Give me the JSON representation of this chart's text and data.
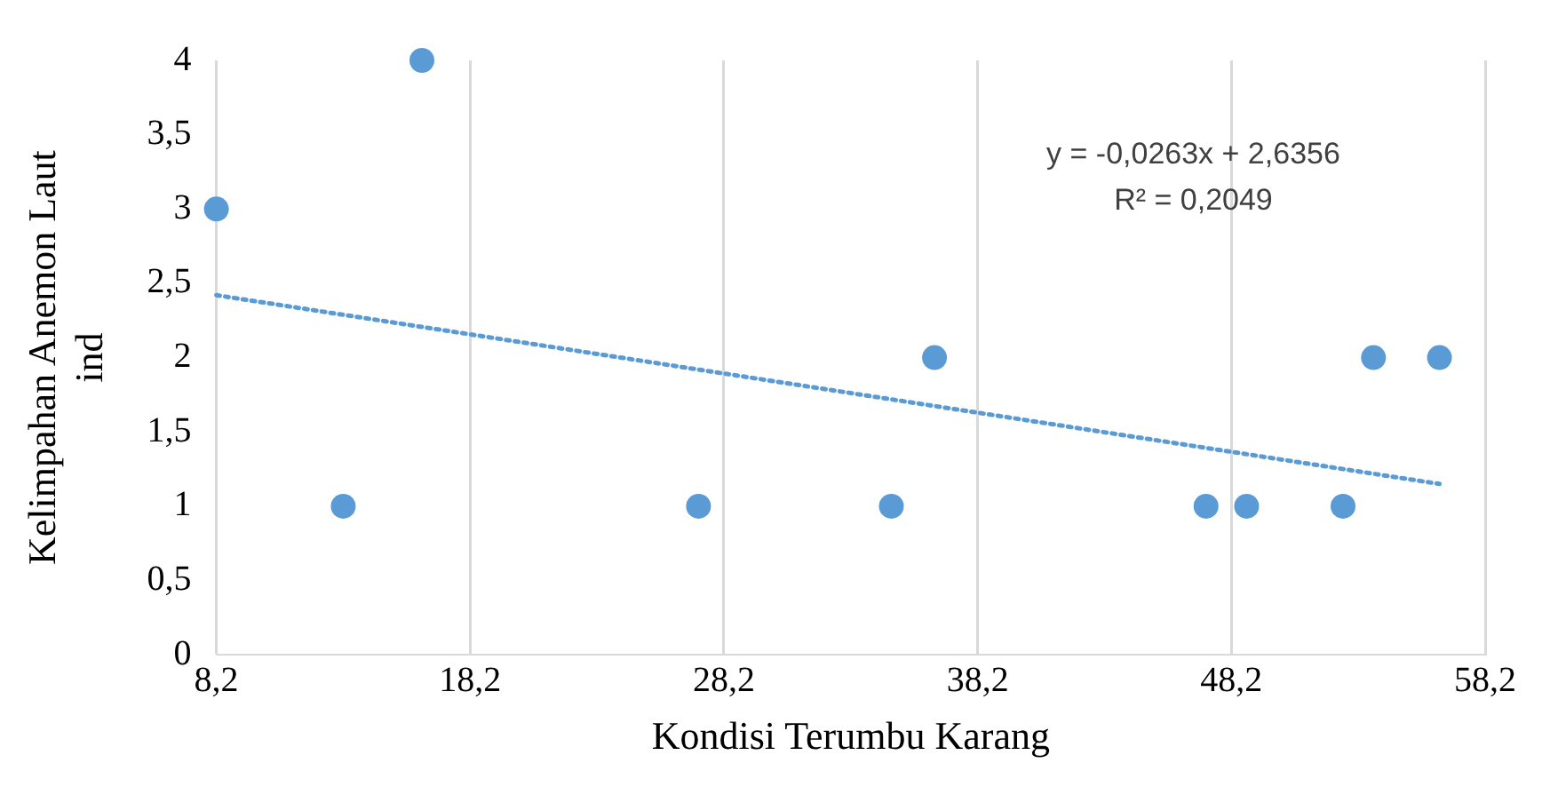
{
  "chart_data": {
    "type": "scatter",
    "xlabel": "Kondisi Terumbu Karang",
    "ylabel": "Kelimpahan Anemon Laut\nind",
    "series": [
      {
        "type": "scatter",
        "color": "#5b9bd5",
        "x": [
          8.2,
          16.3,
          13.2,
          27.2,
          34.8,
          36.5,
          47.2,
          48.8,
          52.6,
          53.8,
          56.4
        ],
        "values": [
          3,
          4,
          1,
          1,
          1,
          2,
          1,
          1,
          1,
          2,
          2
        ],
        "marker": "circle"
      },
      {
        "type": "line",
        "color": "#5b9bd5",
        "x": [
          8.2,
          56.4
        ],
        "values": [
          2.42,
          1.15
        ],
        "line_style": "dotted",
        "marker": "none"
      }
    ],
    "annotations": [
      "y = -0,0263x + 2,6356",
      "R² = 0,2049"
    ],
    "xlim": [
      8.2,
      58.2
    ],
    "xticks": [
      {
        "value": 8.2,
        "label": "8,2"
      },
      {
        "value": 18.2,
        "label": "18,2"
      },
      {
        "value": 28.2,
        "label": "28,2"
      },
      {
        "value": 38.2,
        "label": "38,2"
      },
      {
        "value": 48.2,
        "label": "48,2"
      },
      {
        "value": 58.2,
        "label": "58,2"
      }
    ],
    "ylim": [
      0,
      4
    ],
    "yticks": [
      0,
      {
        "value": 0.5,
        "label": "0,5"
      },
      1,
      {
        "value": 1.5,
        "label": "1,5"
      },
      2,
      {
        "value": 2.5,
        "label": "2,5"
      },
      3,
      {
        "value": 3.5,
        "label": "3,5"
      },
      4
    ],
    "grid": "x",
    "legend": false
  }
}
